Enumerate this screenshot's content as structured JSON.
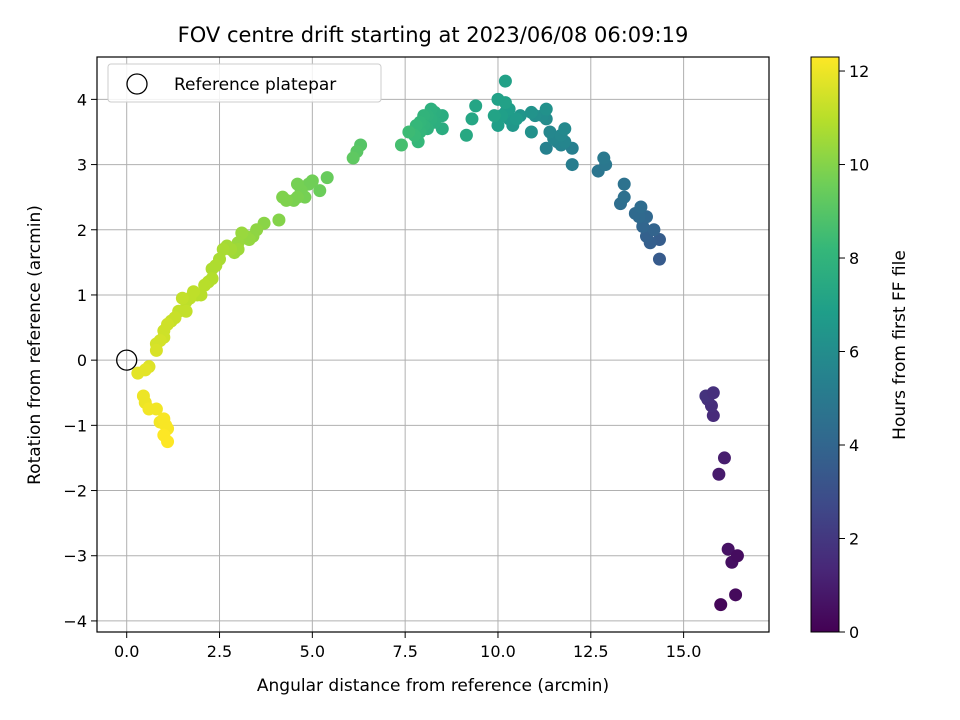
{
  "chart_data": {
    "type": "scatter",
    "title": "FOV centre drift starting at 2023/06/08 06:09:19",
    "xlabel": "Angular distance from reference (arcmin)",
    "ylabel": "Rotation from reference (arcmin)",
    "xlim": [
      -0.8,
      17.3
    ],
    "ylim": [
      -4.17,
      4.65
    ],
    "xticks": [
      "0.0",
      "2.5",
      "5.0",
      "7.5",
      "10.0",
      "12.5",
      "15.0"
    ],
    "xtick_values": [
      0,
      2.5,
      5,
      7.5,
      10,
      12.5,
      15
    ],
    "yticks": [
      "4",
      "3",
      "2",
      "1",
      "0",
      "−1",
      "−2",
      "−3",
      "−4"
    ],
    "ytick_values": [
      4,
      3,
      2,
      1,
      0,
      -1,
      -2,
      -3,
      -4
    ],
    "grid": true,
    "legend": {
      "position": "upper-left",
      "label": "Reference platepar",
      "marker": "hollow-circle"
    },
    "reference_point": [
      0,
      0
    ],
    "colorbar": {
      "label": "Hours from first FF file",
      "range": [
        0,
        12.3
      ],
      "ticks": [
        "0",
        "2",
        "4",
        "6",
        "8",
        "10",
        "12"
      ],
      "tick_values": [
        0,
        2,
        4,
        6,
        8,
        10,
        12
      ],
      "colormap": "viridis"
    },
    "points": [
      [
        16.0,
        -3.75,
        0.2
      ],
      [
        16.4,
        -3.6,
        0.3
      ],
      [
        16.3,
        -3.1,
        0.5
      ],
      [
        16.2,
        -2.9,
        0.6
      ],
      [
        16.45,
        -3.0,
        0.4
      ],
      [
        15.95,
        -1.75,
        0.9
      ],
      [
        16.1,
        -1.5,
        1.0
      ],
      [
        15.8,
        -0.85,
        1.5
      ],
      [
        15.75,
        -0.7,
        1.6
      ],
      [
        15.65,
        -0.6,
        1.7
      ],
      [
        15.6,
        -0.55,
        1.8
      ],
      [
        15.8,
        -0.5,
        1.7
      ],
      [
        14.35,
        1.55,
        3.5
      ],
      [
        14.35,
        1.85,
        3.6
      ],
      [
        14.1,
        1.8,
        3.7
      ],
      [
        14.0,
        1.9,
        3.8
      ],
      [
        14.2,
        2.0,
        3.9
      ],
      [
        13.9,
        2.05,
        4.0
      ],
      [
        14.0,
        2.2,
        4.1
      ],
      [
        13.8,
        2.2,
        4.2
      ],
      [
        13.7,
        2.25,
        4.2
      ],
      [
        13.85,
        2.35,
        4.3
      ],
      [
        13.3,
        2.4,
        4.4
      ],
      [
        13.4,
        2.5,
        4.5
      ],
      [
        13.4,
        2.7,
        4.6
      ],
      [
        12.7,
        2.9,
        4.8
      ],
      [
        12.9,
        3.0,
        4.9
      ],
      [
        12.85,
        3.1,
        5.0
      ],
      [
        12.0,
        3.0,
        5.2
      ],
      [
        12.0,
        3.25,
        5.3
      ],
      [
        11.3,
        3.25,
        5.4
      ],
      [
        11.6,
        3.35,
        5.5
      ],
      [
        11.7,
        3.3,
        5.5
      ],
      [
        11.8,
        3.35,
        5.6
      ],
      [
        11.5,
        3.4,
        5.6
      ],
      [
        11.4,
        3.5,
        5.7
      ],
      [
        11.7,
        3.45,
        5.7
      ],
      [
        11.8,
        3.55,
        5.8
      ],
      [
        11.3,
        3.7,
        5.9
      ],
      [
        11.2,
        3.75,
        6.0
      ],
      [
        11.0,
        3.75,
        6.1
      ],
      [
        11.3,
        3.85,
        6.2
      ],
      [
        10.9,
        3.5,
        6.2
      ],
      [
        10.9,
        3.8,
        6.3
      ],
      [
        10.6,
        3.75,
        6.4
      ],
      [
        10.4,
        3.6,
        6.5
      ],
      [
        10.3,
        3.7,
        6.6
      ],
      [
        10.5,
        3.7,
        6.7
      ],
      [
        10.2,
        3.8,
        6.7
      ],
      [
        10.3,
        3.85,
        6.8
      ],
      [
        10.0,
        3.6,
        6.9
      ],
      [
        10.1,
        3.75,
        6.9
      ],
      [
        10.2,
        3.95,
        7.0
      ],
      [
        10.0,
        4.0,
        7.0
      ],
      [
        9.9,
        3.75,
        7.1
      ],
      [
        10.2,
        4.28,
        7.0
      ],
      [
        9.4,
        3.9,
        7.2
      ],
      [
        9.3,
        3.7,
        7.3
      ],
      [
        9.15,
        3.45,
        7.4
      ],
      [
        8.5,
        3.55,
        7.6
      ],
      [
        8.5,
        3.75,
        7.6
      ],
      [
        8.3,
        3.65,
        7.7
      ],
      [
        8.3,
        3.8,
        7.7
      ],
      [
        8.2,
        3.85,
        7.8
      ],
      [
        8.2,
        3.7,
        7.8
      ],
      [
        8.1,
        3.75,
        7.9
      ],
      [
        8.1,
        3.55,
        7.9
      ],
      [
        8.0,
        3.75,
        8.0
      ],
      [
        8.0,
        3.6,
        8.0
      ],
      [
        7.9,
        3.5,
        8.1
      ],
      [
        7.9,
        3.65,
        8.1
      ],
      [
        7.8,
        3.6,
        8.2
      ],
      [
        7.85,
        3.35,
        8.2
      ],
      [
        7.75,
        3.45,
        8.3
      ],
      [
        7.6,
        3.5,
        8.4
      ],
      [
        7.4,
        3.3,
        8.6
      ],
      [
        6.3,
        3.3,
        9.0
      ],
      [
        6.2,
        3.2,
        9.1
      ],
      [
        6.1,
        3.1,
        9.2
      ],
      [
        5.4,
        2.8,
        9.4
      ],
      [
        5.2,
        2.6,
        9.5
      ],
      [
        5.0,
        2.75,
        9.6
      ],
      [
        4.9,
        2.7,
        9.6
      ],
      [
        4.8,
        2.5,
        9.7
      ],
      [
        4.7,
        2.6,
        9.7
      ],
      [
        4.6,
        2.7,
        9.7
      ],
      [
        4.6,
        2.5,
        9.8
      ],
      [
        4.5,
        2.45,
        9.8
      ],
      [
        4.3,
        2.45,
        9.9
      ],
      [
        4.2,
        2.5,
        9.9
      ],
      [
        4.1,
        2.15,
        10.0
      ],
      [
        3.7,
        2.1,
        10.1
      ],
      [
        3.5,
        2.0,
        10.2
      ],
      [
        3.4,
        1.9,
        10.2
      ],
      [
        3.3,
        1.85,
        10.3
      ],
      [
        3.2,
        1.9,
        10.3
      ],
      [
        3.1,
        1.95,
        10.4
      ],
      [
        3.0,
        1.8,
        10.4
      ],
      [
        3.0,
        1.7,
        10.5
      ],
      [
        2.9,
        1.65,
        10.5
      ],
      [
        2.8,
        1.7,
        10.6
      ],
      [
        2.7,
        1.75,
        10.6
      ],
      [
        2.6,
        1.7,
        10.7
      ],
      [
        2.5,
        1.55,
        10.7
      ],
      [
        2.4,
        1.45,
        10.8
      ],
      [
        2.3,
        1.4,
        10.8
      ],
      [
        2.3,
        1.25,
        10.9
      ],
      [
        2.2,
        1.2,
        10.9
      ],
      [
        2.1,
        1.15,
        11.0
      ],
      [
        2.0,
        1.0,
        11.0
      ],
      [
        1.9,
        1.0,
        11.0
      ],
      [
        1.8,
        1.05,
        11.1
      ],
      [
        1.7,
        0.95,
        11.1
      ],
      [
        1.6,
        0.9,
        11.1
      ],
      [
        1.5,
        0.95,
        11.2
      ],
      [
        1.6,
        0.75,
        11.2
      ],
      [
        1.4,
        0.75,
        11.2
      ],
      [
        1.3,
        0.65,
        11.3
      ],
      [
        1.2,
        0.6,
        11.3
      ],
      [
        1.1,
        0.55,
        11.4
      ],
      [
        1.0,
        0.45,
        11.4
      ],
      [
        1.0,
        0.35,
        11.4
      ],
      [
        0.9,
        0.3,
        11.5
      ],
      [
        0.8,
        0.25,
        11.5
      ],
      [
        0.8,
        0.15,
        11.6
      ],
      [
        0.6,
        -0.1,
        11.7
      ],
      [
        0.5,
        -0.15,
        11.8
      ],
      [
        0.3,
        -0.2,
        11.8
      ],
      [
        0.45,
        -0.55,
        12.0
      ],
      [
        0.5,
        -0.65,
        12.0
      ],
      [
        0.6,
        -0.75,
        12.1
      ],
      [
        0.8,
        -0.75,
        12.1
      ],
      [
        0.9,
        -0.95,
        12.1
      ],
      [
        1.0,
        -0.9,
        12.2
      ],
      [
        1.05,
        -1.0,
        12.2
      ],
      [
        1.1,
        -1.05,
        12.2
      ],
      [
        1.0,
        -1.15,
        12.3
      ],
      [
        1.1,
        -1.25,
        12.3
      ]
    ]
  }
}
